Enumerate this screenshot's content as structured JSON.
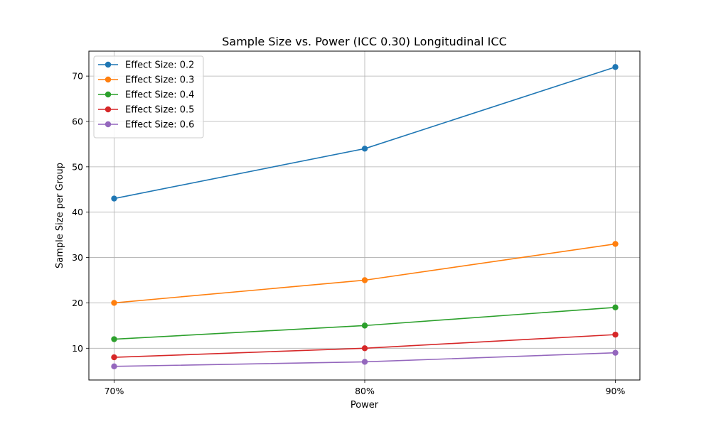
{
  "chart_data": {
    "type": "line",
    "title": "Sample Size vs. Power (ICC 0.30) Longitudinal ICC",
    "xlabel": "Power",
    "ylabel": "Sample Size per Group",
    "categories": [
      "70%",
      "80%",
      "90%"
    ],
    "ylim": [
      3,
      75.5
    ],
    "yticks": [
      10,
      20,
      30,
      40,
      50,
      60,
      70
    ],
    "grid": true,
    "legend_position": "top-left",
    "series": [
      {
        "name": "Effect Size: 0.2",
        "color": "#1f77b4",
        "values": [
          43,
          54,
          72
        ]
      },
      {
        "name": "Effect Size: 0.3",
        "color": "#ff7f0e",
        "values": [
          20,
          25,
          33
        ]
      },
      {
        "name": "Effect Size: 0.4",
        "color": "#2ca02c",
        "values": [
          12,
          15,
          19
        ]
      },
      {
        "name": "Effect Size: 0.5",
        "color": "#d62728",
        "values": [
          8,
          10,
          13
        ]
      },
      {
        "name": "Effect Size: 0.6",
        "color": "#9467bd",
        "values": [
          6,
          7,
          9
        ]
      }
    ]
  }
}
